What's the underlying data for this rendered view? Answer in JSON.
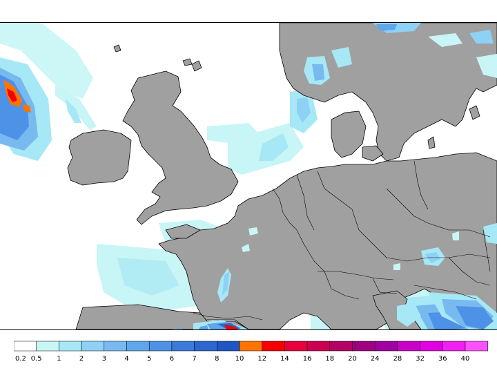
{
  "legend": {
    "colors": [
      "#ffffff",
      "#c8f5f5",
      "#a6e8f5",
      "#8fd0f5",
      "#78b9f0",
      "#5fa6eb",
      "#4d92e6",
      "#3a7ad9",
      "#2c66cf",
      "#1f56c2",
      "#ff7300",
      "#f50000",
      "#e6003c",
      "#cc0050",
      "#b30064",
      "#a00080",
      "#a000a0",
      "#c800c8",
      "#e000e0",
      "#f020f0",
      "#ff50ff"
    ],
    "ticks": [
      "0.2",
      "0.5",
      "1",
      "2",
      "3",
      "4",
      "5",
      "6",
      "7",
      "8",
      "10",
      "12",
      "14",
      "16",
      "18",
      "20",
      "24",
      "28",
      "32",
      "36",
      "40"
    ]
  },
  "map": {
    "land_color": "#a0a0a0",
    "sea_color": "#ffffff",
    "border_color": "#000000"
  }
}
